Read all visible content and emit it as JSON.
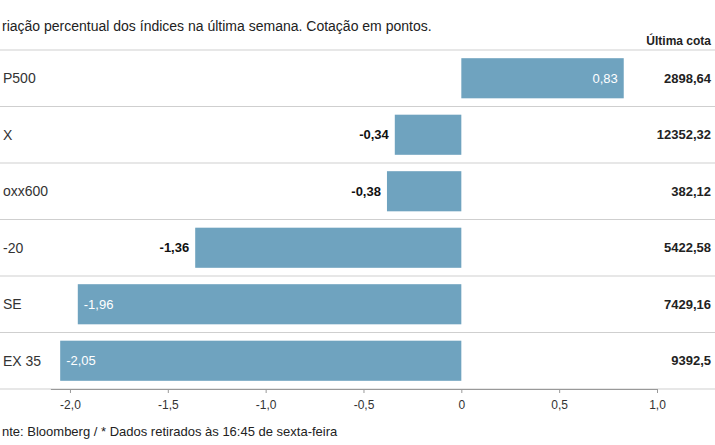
{
  "chart_data": {
    "type": "bar",
    "orientation": "horizontal",
    "title": "riação percentual dos índices na última semana. Cotação em pontos.",
    "categories": [
      "P500",
      "X",
      "oxx600",
      "-20",
      "SE",
      "EX 35"
    ],
    "values": [
      0.83,
      -0.34,
      -0.38,
      -1.36,
      -1.96,
      -2.05
    ],
    "value_labels": [
      "0,83",
      "-0,34",
      "-0,38",
      "-1,36",
      "-1,96",
      "-2,05"
    ],
    "data_labels": true,
    "color": "#6fa3bf",
    "xlim": [
      -2.1,
      1.0
    ],
    "xticks": [
      {
        "value": -2,
        "label": "-2,0"
      },
      {
        "value": -1.5,
        "label": "-1,5"
      },
      {
        "value": -1,
        "label": "-1,0"
      },
      {
        "value": -0.5,
        "label": "-0,5"
      },
      0,
      {
        "value": 0.5,
        "label": "0,5"
      },
      {
        "value": 1,
        "label": "1,0"
      }
    ],
    "grid": false,
    "last_quote": {
      "title": "Última cota",
      "labels": [
        "2898,64",
        "12352,32",
        "382,12",
        "5422,58",
        "7429,16",
        "9392,5"
      ]
    },
    "source": "nte: Bloomberg / * Dados retirados às 16:45 de sexta-feira"
  }
}
